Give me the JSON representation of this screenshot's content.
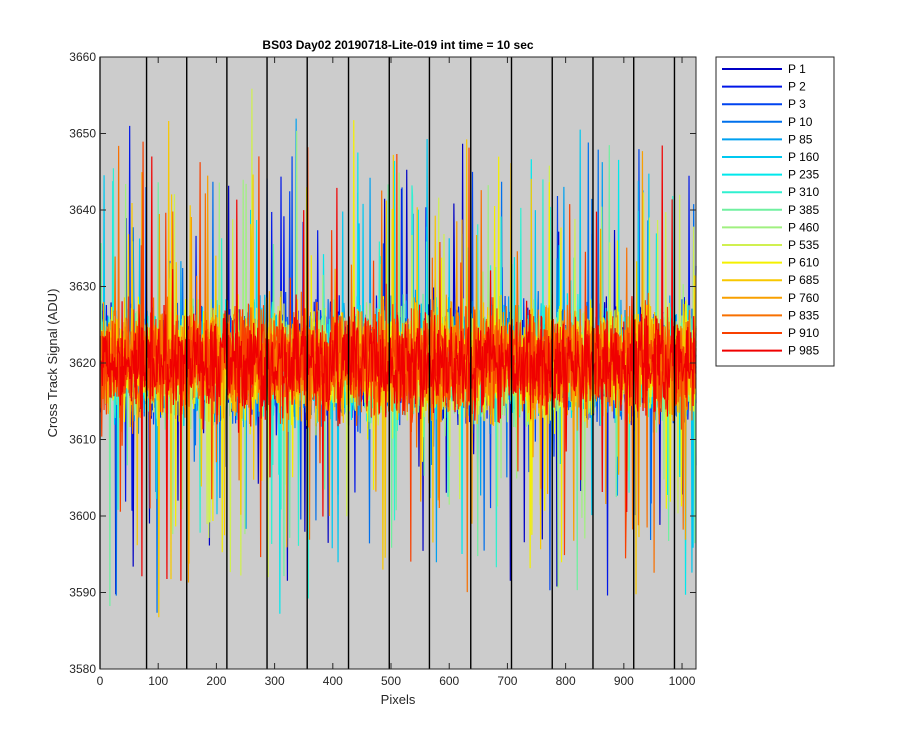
{
  "chart_data": {
    "type": "line",
    "title": "BS03 Day02 20190718-Lite-019 int time = 10 sec",
    "xlabel": "Pixels",
    "ylabel": "Cross Track Signal (ADU)",
    "xlim": [
      0,
      1024
    ],
    "ylim": [
      3580,
      3660
    ],
    "x_ticks": [
      0,
      100,
      200,
      300,
      400,
      500,
      600,
      700,
      800,
      900,
      1000
    ],
    "x_tick_labels": [
      "0",
      "100",
      "200",
      "300",
      "400",
      "500",
      "600",
      "700",
      "800",
      "900",
      "1000"
    ],
    "y_ticks": [
      3580,
      3590,
      3600,
      3610,
      3620,
      3630,
      3640,
      3650,
      3660
    ],
    "y_tick_labels": [
      "3580",
      "3590",
      "3600",
      "3610",
      "3620",
      "3630",
      "3640",
      "3650",
      "3660"
    ],
    "grid": false,
    "background_color": "#cccccc",
    "vertical_lines_x": [
      0,
      80,
      149,
      218,
      287,
      356,
      427,
      497,
      566,
      637,
      707,
      777,
      847,
      917,
      987
    ],
    "vertical_line_color": "#000000",
    "legend_position": "outside-top-right",
    "series_stats": {
      "center": 3620,
      "spread": 6,
      "x_start": 1,
      "x_end": 1024
    },
    "series": [
      {
        "name": "P 1",
        "color": "#0000c4"
      },
      {
        "name": "P 2",
        "color": "#0016e8"
      },
      {
        "name": "P 3",
        "color": "#0044f0"
      },
      {
        "name": "P 10",
        "color": "#0070ec"
      },
      {
        "name": "P 85",
        "color": "#00a0f0"
      },
      {
        "name": "P 160",
        "color": "#00c8f0"
      },
      {
        "name": "P 235",
        "color": "#00e8ec"
      },
      {
        "name": "P 310",
        "color": "#30f0d0"
      },
      {
        "name": "P 385",
        "color": "#70f0a0"
      },
      {
        "name": "P 460",
        "color": "#a0f080"
      },
      {
        "name": "P 535",
        "color": "#d0f050"
      },
      {
        "name": "P 610",
        "color": "#f4f000"
      },
      {
        "name": "P 685",
        "color": "#f8c800"
      },
      {
        "name": "P 760",
        "color": "#f8a000"
      },
      {
        "name": "P 835",
        "color": "#f87000"
      },
      {
        "name": "P 910",
        "color": "#f84000"
      },
      {
        "name": "P 985",
        "color": "#f00000"
      }
    ]
  }
}
